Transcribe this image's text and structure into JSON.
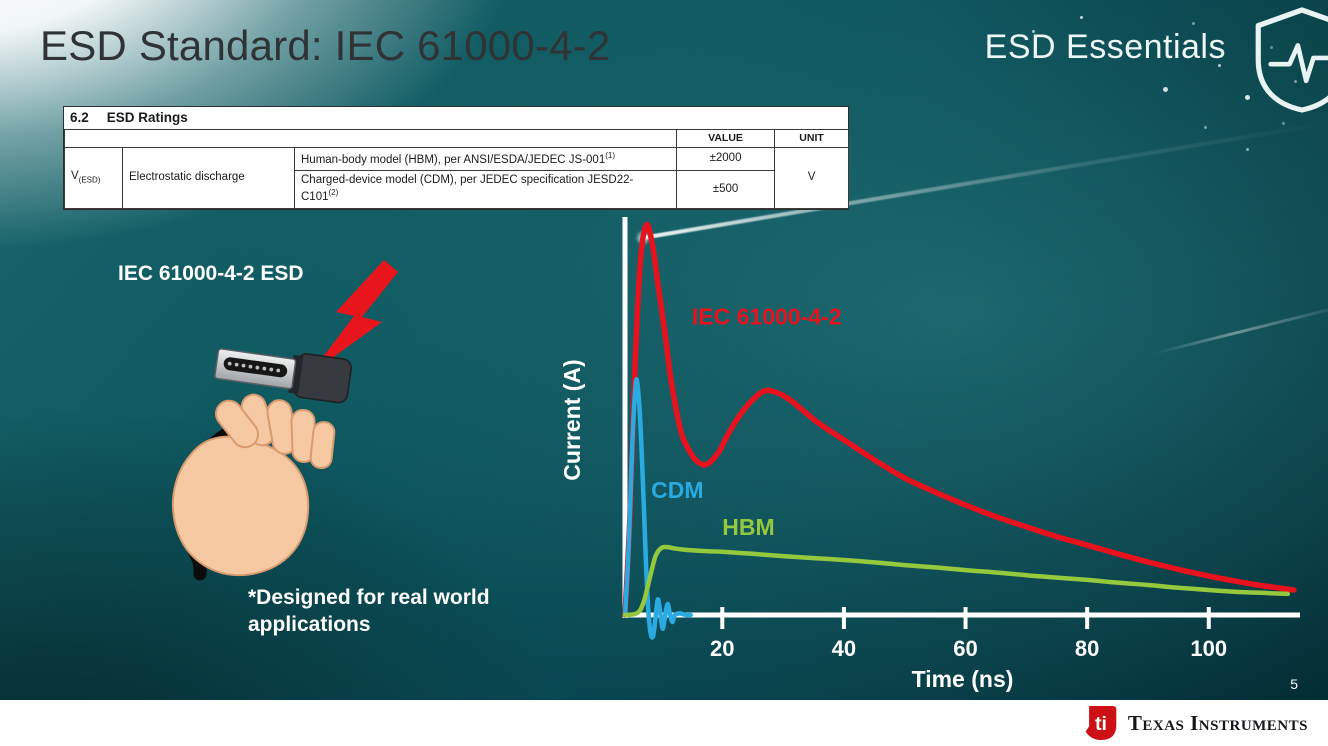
{
  "slide": {
    "title": "ESD Standard: IEC 61000-4-2",
    "series_label": "ESD Essentials",
    "page_number": "5"
  },
  "colors": {
    "background_teal": "#0b525a",
    "iec_red": "#e8121e",
    "cdm_cyan": "#29abe2",
    "hbm_green": "#94c83d",
    "ti_red": "#cc1016"
  },
  "icons": {
    "shield": "shield-pulse-icon",
    "bolt": "lightning-bolt-icon",
    "ti_bug": "ti-bug-icon"
  },
  "ratings_table": {
    "caption_number": "6.2",
    "caption": "ESD Ratings",
    "col_headers": {
      "value": "VALUE",
      "unit": "UNIT"
    },
    "row_symbol": "V",
    "row_symbol_sub": "(ESD)",
    "row_parameter": "Electrostatic discharge",
    "rows": [
      {
        "desc": "Human-body model (HBM), per ANSI/ESDA/JEDEC JS-001",
        "desc_sup": "(1)",
        "value": "±2000"
      },
      {
        "desc": "Charged-device model (CDM), per JEDEC specification JESD22-C101",
        "desc_sup": "(2)",
        "value": "±500"
      }
    ],
    "unit": "V"
  },
  "illustration": {
    "label": "IEC 61000-4-2 ESD",
    "footnote": "*Designed for real world applications"
  },
  "chart_data": {
    "type": "line",
    "title": "",
    "xlabel": "Time (ns)",
    "ylabel": "Current (A)",
    "xlim": [
      4,
      115
    ],
    "ylim": [
      -0.06,
      1.0
    ],
    "x_ticks": [
      20,
      40,
      60,
      80,
      100
    ],
    "grid": false,
    "legend_position": "inline-labels",
    "series": [
      {
        "name": "IEC 61000-4-2",
        "color": "#e8121e",
        "stroke_width": 5.5,
        "label_at": [
          15,
          0.745
        ],
        "points": [
          [
            4,
            0
          ],
          [
            4.8,
            0.25
          ],
          [
            5.6,
            0.62
          ],
          [
            6.5,
            0.9
          ],
          [
            7.5,
            1.0
          ],
          [
            8.5,
            0.95
          ],
          [
            9.5,
            0.84
          ],
          [
            10.5,
            0.73
          ],
          [
            11.5,
            0.61
          ],
          [
            12.5,
            0.52
          ],
          [
            13.5,
            0.455
          ],
          [
            15,
            0.41
          ],
          [
            16,
            0.392
          ],
          [
            17,
            0.385
          ],
          [
            18,
            0.392
          ],
          [
            19.5,
            0.42
          ],
          [
            21,
            0.465
          ],
          [
            23,
            0.515
          ],
          [
            25,
            0.552
          ],
          [
            27,
            0.575
          ],
          [
            29,
            0.57
          ],
          [
            31,
            0.553
          ],
          [
            33,
            0.528
          ],
          [
            36,
            0.49
          ],
          [
            40,
            0.449
          ],
          [
            45,
            0.398
          ],
          [
            50,
            0.351
          ],
          [
            55,
            0.315
          ],
          [
            60,
            0.282
          ],
          [
            65,
            0.252
          ],
          [
            70,
            0.226
          ],
          [
            75,
            0.201
          ],
          [
            80,
            0.179
          ],
          [
            85,
            0.157
          ],
          [
            90,
            0.136
          ],
          [
            95,
            0.117
          ],
          [
            100,
            0.1
          ],
          [
            104,
            0.088
          ],
          [
            108,
            0.077
          ],
          [
            114,
            0.064
          ]
        ]
      },
      {
        "name": "CDM",
        "color": "#29abe2",
        "stroke_width": 4.5,
        "label_at": [
          8.3,
          0.3
        ],
        "points": [
          [
            4,
            0
          ],
          [
            4.6,
            0.17
          ],
          [
            5.2,
            0.44
          ],
          [
            5.7,
            0.58
          ],
          [
            6,
            0.597
          ],
          [
            6.5,
            0.5
          ],
          [
            7,
            0.32
          ],
          [
            7.4,
            0.15
          ],
          [
            7.8,
            0.02
          ],
          [
            8.2,
            -0.045
          ],
          [
            8.6,
            -0.055
          ],
          [
            9,
            -0.01
          ],
          [
            9.4,
            0.04
          ],
          [
            9.8,
            0.005
          ],
          [
            10.2,
            -0.035
          ],
          [
            10.6,
            -0.002
          ],
          [
            11,
            0.028
          ],
          [
            11.4,
            0.002
          ],
          [
            11.8,
            -0.018
          ],
          [
            12.2,
            0
          ],
          [
            13,
            0.004
          ],
          [
            14,
            0
          ],
          [
            14.8,
            0
          ]
        ]
      },
      {
        "name": "HBM",
        "color": "#94c83d",
        "stroke_width": 4.5,
        "label_at": [
          20,
          0.205
        ],
        "points": [
          [
            4,
            0
          ],
          [
            6,
            0.005
          ],
          [
            7,
            0.03
          ],
          [
            8,
            0.09
          ],
          [
            9,
            0.15
          ],
          [
            10,
            0.172
          ],
          [
            11,
            0.174
          ],
          [
            12,
            0.171
          ],
          [
            14,
            0.167
          ],
          [
            17,
            0.164
          ],
          [
            20,
            0.162
          ],
          [
            25,
            0.157
          ],
          [
            30,
            0.151
          ],
          [
            35,
            0.146
          ],
          [
            40,
            0.141
          ],
          [
            45,
            0.135
          ],
          [
            50,
            0.128
          ],
          [
            55,
            0.122
          ],
          [
            60,
            0.115
          ],
          [
            65,
            0.109
          ],
          [
            70,
            0.102
          ],
          [
            75,
            0.096
          ],
          [
            80,
            0.09
          ],
          [
            85,
            0.083
          ],
          [
            90,
            0.077
          ],
          [
            95,
            0.07
          ],
          [
            100,
            0.064
          ],
          [
            105,
            0.059
          ],
          [
            110,
            0.056
          ],
          [
            113,
            0.054
          ]
        ]
      }
    ]
  },
  "footer": {
    "brand": "Texas Instruments",
    "logo_monogram": "ti"
  }
}
